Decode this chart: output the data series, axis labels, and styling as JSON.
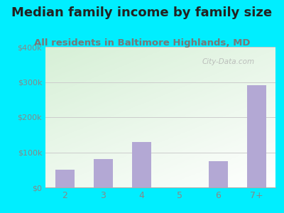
{
  "title": "Median family income by family size",
  "subtitle": "All residents in Baltimore Highlands, MD",
  "categories": [
    "2",
    "3",
    "4",
    "5",
    "6",
    "7+"
  ],
  "values": [
    50000,
    80000,
    130000,
    0,
    75000,
    290000
  ],
  "bar_color": "#b3a8d4",
  "fig_bg_color": "#00eeff",
  "title_color": "#222222",
  "subtitle_color": "#777777",
  "tick_color": "#888888",
  "grid_color": "#cccccc",
  "ylim": [
    0,
    400000
  ],
  "yticks": [
    0,
    100000,
    200000,
    300000,
    400000
  ],
  "ytick_labels": [
    "$0",
    "$100k",
    "$200k",
    "$300k",
    "$400k"
  ],
  "title_fontsize": 13,
  "subtitle_fontsize": 9.5,
  "watermark": "City-Data.com"
}
